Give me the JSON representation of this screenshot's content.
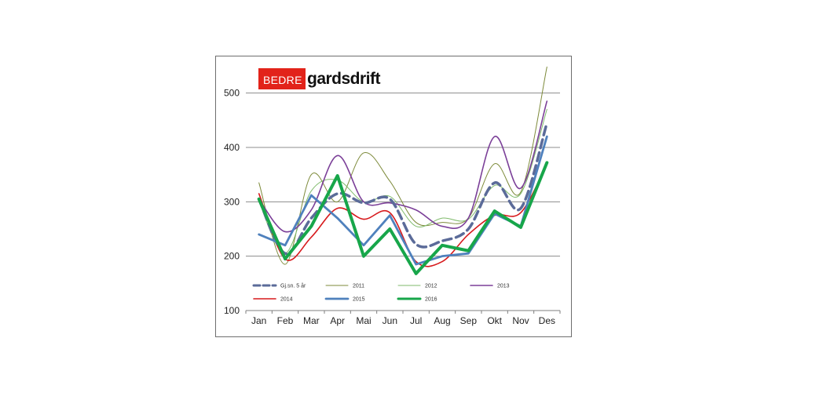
{
  "logo": {
    "word1": "BEDRE",
    "word2": "gardsdrift"
  },
  "chart_data": {
    "type": "line",
    "categories": [
      "Jan",
      "Feb",
      "Mar",
      "Apr",
      "Mai",
      "Jun",
      "Jul",
      "Aug",
      "Sep",
      "Okt",
      "Nov",
      "Des"
    ],
    "ylim": [
      100,
      550
    ],
    "yticks": [
      100,
      200,
      300,
      400,
      500
    ],
    "grid": true,
    "legend_position": "bottom-left inside plot",
    "series": [
      {
        "name": "Gj.sn. 5 år",
        "color": "#5b6b99",
        "style": "dashed",
        "values": [
          305,
          205,
          270,
          315,
          298,
          305,
          222,
          228,
          250,
          335,
          288,
          445
        ]
      },
      {
        "name": "2011",
        "color": "#7d8a3a",
        "style": "thin",
        "values": [
          335,
          185,
          350,
          300,
          390,
          338,
          262,
          262,
          270,
          370,
          318,
          548
        ]
      },
      {
        "name": "2012",
        "color": "#7fba6b",
        "style": "thin",
        "values": [
          300,
          205,
          320,
          340,
          300,
          310,
          255,
          270,
          268,
          330,
          315,
          470
        ]
      },
      {
        "name": "2013",
        "color": "#7b3f98",
        "style": "medium",
        "values": [
          305,
          245,
          285,
          385,
          300,
          298,
          285,
          255,
          270,
          420,
          325,
          485
        ]
      },
      {
        "name": "2014",
        "color": "#d7191c",
        "style": "medium",
        "values": [
          315,
          195,
          235,
          288,
          268,
          280,
          190,
          190,
          240,
          275,
          280,
          370
        ]
      },
      {
        "name": "2015",
        "color": "#4f81bd",
        "style": "straight",
        "values": [
          240,
          220,
          312,
          270,
          220,
          275,
          185,
          200,
          205,
          278,
          255,
          420
        ]
      },
      {
        "name": "2016",
        "color": "#17a64a",
        "style": "thick",
        "values": [
          305,
          195,
          255,
          348,
          200,
          250,
          168,
          220,
          210,
          283,
          253,
          372
        ]
      }
    ]
  }
}
